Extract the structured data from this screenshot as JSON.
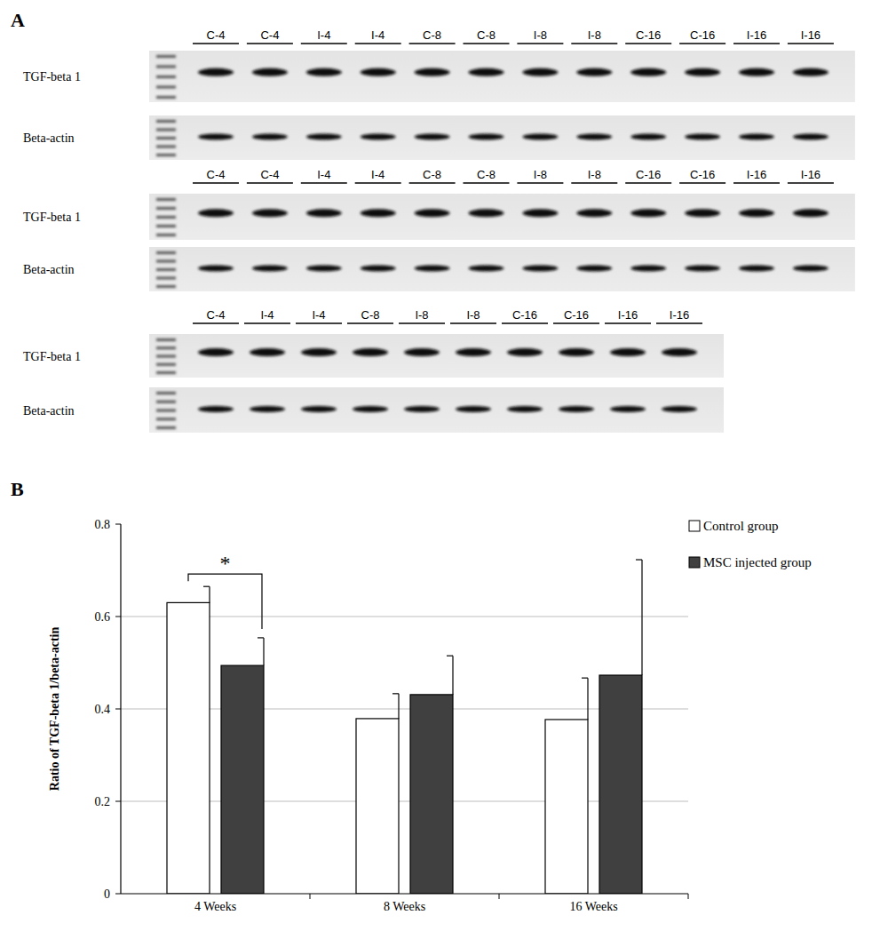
{
  "panel_labels": [
    "A",
    "B"
  ],
  "gel": {
    "blots": [
      {
        "rows": [
          "TGF-beta 1",
          "Beta-actin"
        ],
        "lanes": [
          "C-4",
          "C-4",
          "I-4",
          "I-4",
          "C-8",
          "C-8",
          "I-8",
          "I-8",
          "C-16",
          "C-16",
          "I-16",
          "I-16"
        ]
      },
      {
        "rows": [
          "TGF-beta 1",
          "Beta-actin"
        ],
        "lanes": [
          "C-4",
          "C-4",
          "I-4",
          "I-4",
          "C-8",
          "C-8",
          "I-8",
          "I-8",
          "C-16",
          "C-16",
          "I-16",
          "I-16"
        ]
      },
      {
        "rows": [
          "TGF-beta 1",
          "Beta-actin"
        ],
        "lanes": [
          "C-4",
          "I-4",
          "I-4",
          "C-8",
          "I-8",
          "I-8",
          "C-16",
          "C-16",
          "I-16",
          "I-16"
        ]
      }
    ]
  },
  "chart_data": {
    "type": "bar",
    "categories": [
      "4 Weeks",
      "8 Weeks",
      "16 Weeks"
    ],
    "series": [
      {
        "name": "Control group",
        "color": "#ffffff",
        "values": [
          0.63,
          0.379,
          0.377
        ],
        "errors": [
          0.035,
          0.054,
          0.09
        ]
      },
      {
        "name": "MSC injected group",
        "color": "#404040",
        "values": [
          0.494,
          0.431,
          0.473
        ],
        "errors": [
          0.06,
          0.084,
          0.25
        ]
      }
    ],
    "y_label": "Ratio of TGF-beta 1/beta-actin",
    "ylim": [
      0,
      0.8
    ],
    "yticks": [
      0,
      0.2,
      0.4,
      0.6,
      0.8
    ],
    "grid": true,
    "legend": "top-right",
    "annotations": [
      {
        "text": "*",
        "category": 0
      }
    ]
  }
}
